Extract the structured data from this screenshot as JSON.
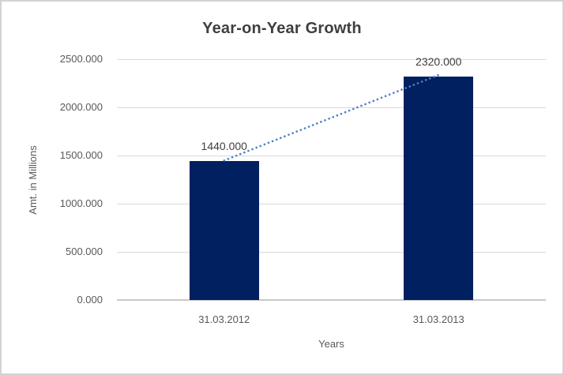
{
  "window": {
    "background": "#ffffff",
    "frame_border_color": "#d3d3d3"
  },
  "chart_data": {
    "type": "bar",
    "title": "Year-on-Year Growth",
    "xlabel": "Years",
    "ylabel": "Amt. in Millions",
    "categories": [
      "31.03.2012",
      "31.03.2013"
    ],
    "values": [
      1440,
      2320
    ],
    "data_labels": [
      "1440.000",
      "2320.000"
    ],
    "ylim": [
      0,
      2500
    ],
    "y_ticks": [
      0,
      500,
      1000,
      1500,
      2000,
      2500
    ],
    "y_tick_labels": [
      "0.000",
      "500.000",
      "1000.000",
      "1500.000",
      "2000.000",
      "2500.000"
    ],
    "grid": true,
    "legend": false,
    "bar_color": "#002060",
    "gridline_color": "#d9d9d9",
    "axis_line_color": "#c9c9c9",
    "title_color": "#3f3f3f",
    "axis_text_color": "#595959",
    "data_label_color": "#404040",
    "trendline": {
      "style": "dotted",
      "color": "#4a80c4",
      "from_value": 1440,
      "to_value": 2320
    }
  }
}
